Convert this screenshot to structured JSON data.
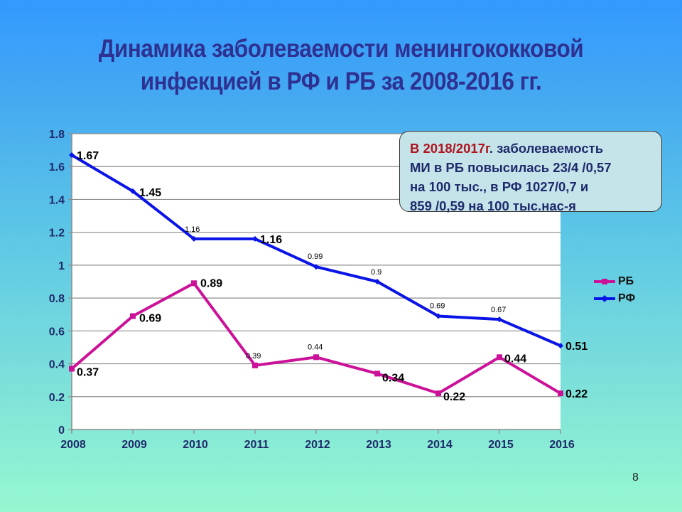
{
  "slide": {
    "title_line1": "Динамика заболеваемости менингококковой",
    "title_line2": "инфекцией в РФ и РБ за 2008-2016 гг.",
    "page_number": "8"
  },
  "callout": {
    "highlight": "В 2018/2017г",
    "text_part1": ". заболеваемость",
    "line2": "МИ в РБ  повысилась 23/4 /0,57",
    "line3": "на 100 тыс., в РФ 1027/0,7 и",
    "line4": "859 /0,59 на 100 тыс.нас-я"
  },
  "legend": [
    {
      "name": "РБ",
      "color": "#cc1199",
      "marker": "square"
    },
    {
      "name": "РФ",
      "color": "#0a14e6",
      "marker": "diamond"
    }
  ],
  "chart_data": {
    "type": "line",
    "title": "Динамика заболеваемости менингококковой инфекцией в РФ и РБ за 2008-2016 гг.",
    "xlabel": "",
    "ylabel": "",
    "categories": [
      "2008",
      "2009",
      "2010",
      "2011",
      "2012",
      "2013",
      "2014",
      "2015",
      "2016"
    ],
    "ylim": [
      0,
      1.8
    ],
    "yticks": [
      "0",
      "0.2",
      "0.4",
      "0.6",
      "0.8",
      "1",
      "1.2",
      "1.4",
      "1.6",
      "1.8"
    ],
    "grid": true,
    "legend_position": "right",
    "series": [
      {
        "name": "РБ",
        "color": "#cc1199",
        "values": [
          0.37,
          0.69,
          0.89,
          0.39,
          0.44,
          0.34,
          0.22,
          0.44,
          0.22
        ],
        "labels": [
          "0.37",
          "0.69",
          "0.89",
          "0.39",
          "0.44",
          "0.34",
          "0.22",
          "0.44",
          "0.22"
        ]
      },
      {
        "name": "РФ",
        "color": "#0a14e6",
        "values": [
          1.67,
          1.45,
          1.16,
          1.16,
          0.99,
          0.9,
          0.69,
          0.67,
          0.51
        ],
        "labels": [
          "1.67",
          "1.45",
          "1.16",
          "1.16",
          "0.99",
          "0.9",
          "0.69",
          "0.67",
          "0.51"
        ]
      }
    ]
  }
}
